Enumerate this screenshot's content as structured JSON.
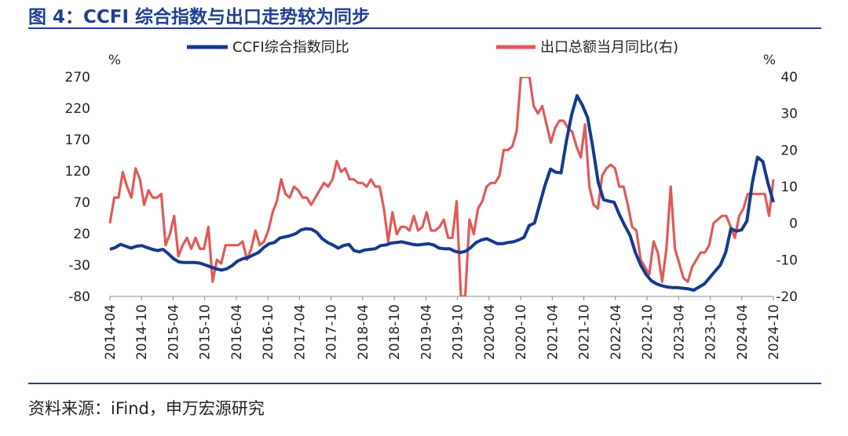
{
  "figure": {
    "title": "图 4：CCFI 综合指数与出口走势较为同步",
    "source": "资料来源：iFind，申万宏源研究"
  },
  "chart_data": {
    "type": "line",
    "title": "图 4：CCFI 综合指数与出口走势较为同步",
    "y_left_label": "%",
    "y_right_label": "%",
    "y_left_ticks": [
      270,
      220,
      170,
      120,
      70,
      20,
      -30,
      -80
    ],
    "y_right_ticks": [
      40,
      30,
      20,
      10,
      0,
      -10,
      -20
    ],
    "y_left_range": [
      -80,
      270
    ],
    "y_right_range": [
      -20,
      40
    ],
    "x_start": "2014-04",
    "x_ticks": [
      "2014-04",
      "2014-10",
      "2015-04",
      "2015-10",
      "2016-04",
      "2016-10",
      "2017-04",
      "2017-10",
      "2018-04",
      "2018-10",
      "2019-04",
      "2019-10",
      "2020-04",
      "2020-10",
      "2021-04",
      "2021-10",
      "2022-04",
      "2022-10",
      "2023-04",
      "2023-10",
      "2024-04",
      "2024-10"
    ],
    "series": [
      {
        "name": "CCFI综合指数同比",
        "axis": "left",
        "color": "#143a8c",
        "values": [
          -5,
          -2,
          3,
          0,
          -3,
          0,
          1,
          -2,
          -5,
          -7,
          -5,
          -12,
          -20,
          -25,
          -26,
          -26,
          -26,
          -27,
          -30,
          -33,
          -36,
          -38,
          -36,
          -31,
          -24,
          -20,
          -18,
          -14,
          -10,
          -2,
          4,
          6,
          13,
          15,
          17,
          20,
          26,
          28,
          27,
          22,
          12,
          6,
          2,
          -3,
          1,
          3,
          -7,
          -9,
          -6,
          -5,
          -4,
          1,
          2,
          5,
          6,
          7,
          5,
          3,
          2,
          3,
          4,
          2,
          -3,
          -4,
          -4,
          -8,
          -10,
          -8,
          -2,
          6,
          10,
          12,
          8,
          4,
          4,
          6,
          7,
          10,
          14,
          33,
          37,
          68,
          98,
          123,
          118,
          117,
          168,
          210,
          240,
          225,
          205,
          156,
          102,
          74,
          72,
          70,
          50,
          33,
          17,
          -10,
          -30,
          -45,
          -55,
          -60,
          -63,
          -65,
          -66,
          -66,
          -67,
          -68,
          -70,
          -65,
          -60,
          -50,
          -40,
          -30,
          -10,
          28,
          24,
          26,
          40,
          100,
          142,
          135,
          100,
          70
        ]
      },
      {
        "name": "出口总额当月同比(右)",
        "axis": "right",
        "color": "#e05a5a",
        "values": [
          0,
          7,
          7,
          14,
          10,
          7,
          15,
          12,
          5,
          9,
          7,
          7,
          8,
          -6,
          -3,
          2,
          -9,
          -6,
          -4,
          -7,
          -4,
          -7,
          -7,
          -1,
          -16,
          -10,
          -11,
          -6,
          -6,
          -6,
          -6,
          -5,
          -10,
          -7,
          -2,
          -6,
          -5,
          -2,
          3,
          6,
          12,
          8,
          7,
          10,
          9,
          7,
          7,
          5,
          7,
          9,
          11,
          10,
          12,
          17,
          14,
          15,
          12,
          12,
          11,
          11,
          10,
          12,
          10,
          10,
          4,
          -5,
          3,
          -3,
          -1,
          -1,
          -2,
          2,
          -2,
          -1,
          3,
          -2,
          -2,
          -1,
          1,
          -4,
          -4,
          6,
          -20,
          -20,
          1,
          -3,
          4,
          6,
          10,
          11,
          11,
          13,
          20,
          20,
          21,
          25,
          40,
          40,
          40,
          32,
          30,
          32,
          27,
          22,
          26,
          28,
          28,
          26,
          25,
          21,
          18,
          27,
          10,
          5,
          4,
          13,
          15,
          16,
          15,
          10,
          10,
          5,
          -1,
          -2,
          -10,
          -12,
          -14,
          -5,
          -8,
          -16,
          -7,
          10,
          -7,
          -11,
          -15,
          -16,
          -12,
          -10,
          -8,
          -8,
          -6,
          0,
          1,
          2,
          2,
          -1,
          -4,
          2,
          4,
          8,
          8,
          8,
          8,
          8,
          2,
          12
        ]
      }
    ]
  }
}
